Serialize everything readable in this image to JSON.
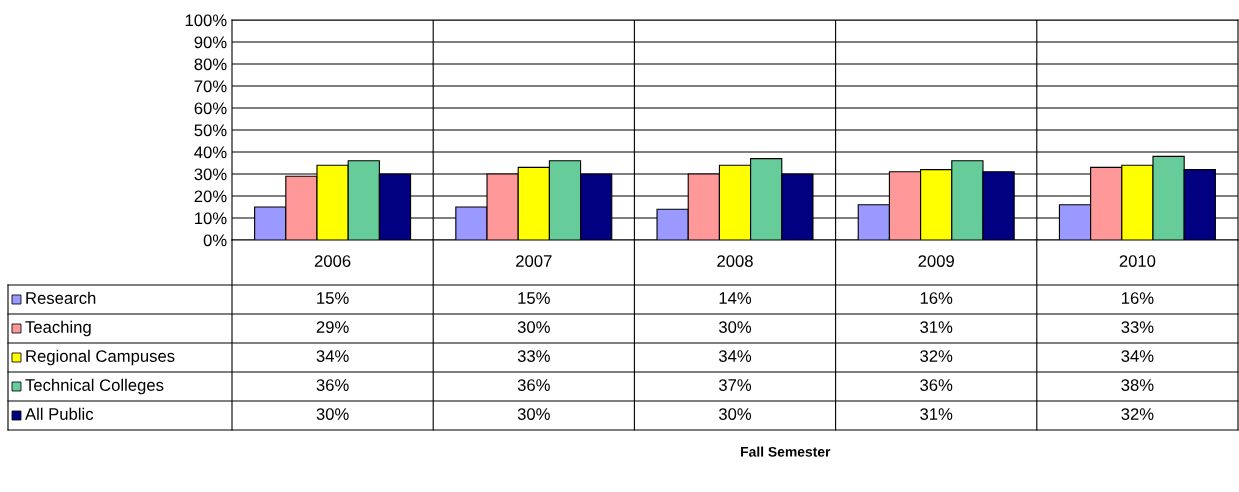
{
  "chart_data": {
    "type": "bar",
    "annotations": [
      "Fall Semester"
    ],
    "categories": [
      "2006",
      "2007",
      "2008",
      "2009",
      "2010"
    ],
    "series": [
      {
        "name": "Research",
        "color": "#9999ff",
        "values": [
          15,
          15,
          14,
          16,
          16
        ]
      },
      {
        "name": "Teaching",
        "color": "#ff9999",
        "values": [
          29,
          30,
          30,
          31,
          33
        ]
      },
      {
        "name": "Regional Campuses",
        "color": "#ffff00",
        "values": [
          34,
          33,
          34,
          32,
          34
        ]
      },
      {
        "name": "Technical Colleges",
        "color": "#66cc99",
        "values": [
          36,
          36,
          37,
          36,
          38
        ]
      },
      {
        "name": "All Public",
        "color": "#000080",
        "values": [
          30,
          30,
          30,
          31,
          32
        ]
      }
    ],
    "ylim": [
      0,
      100
    ],
    "yticks": [
      {
        "value": 0,
        "label": "0%"
      },
      {
        "value": 10,
        "label": "10%"
      },
      {
        "value": 20,
        "label": "20%"
      },
      {
        "value": 30,
        "label": "30%"
      },
      {
        "value": 40,
        "label": "40%"
      },
      {
        "value": 50,
        "label": "50%"
      },
      {
        "value": 60,
        "label": "60%"
      },
      {
        "value": 70,
        "label": "70%"
      },
      {
        "value": 80,
        "label": "80%"
      },
      {
        "value": 90,
        "label": "90%"
      },
      {
        "value": 100,
        "label": "100%"
      }
    ],
    "value_labels": [
      [
        "15%",
        "15%",
        "14%",
        "16%",
        "16%"
      ],
      [
        "29%",
        "30%",
        "30%",
        "31%",
        "33%"
      ],
      [
        "34%",
        "33%",
        "34%",
        "32%",
        "34%"
      ],
      [
        "36%",
        "36%",
        "37%",
        "36%",
        "38%"
      ],
      [
        "30%",
        "30%",
        "30%",
        "31%",
        "32%"
      ]
    ],
    "grid": "y",
    "legend": "bottom left"
  }
}
